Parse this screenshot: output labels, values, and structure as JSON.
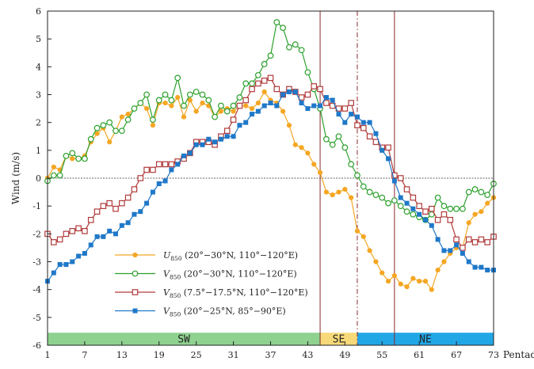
{
  "chart_data": {
    "type": "line",
    "title": "",
    "xlabel": "Pentad",
    "ylabel": "Wind (m/s)",
    "xlim": [
      1,
      73
    ],
    "ylim": [
      -6,
      6
    ],
    "x_ticks": [
      1,
      7,
      13,
      19,
      25,
      31,
      37,
      43,
      49,
      55,
      61,
      67,
      73
    ],
    "y_ticks": [
      -6,
      -5,
      -4,
      -3,
      -2,
      -1,
      0,
      1,
      2,
      3,
      4,
      5,
      6
    ],
    "grid": false,
    "zero_line": true,
    "x": [
      1,
      2,
      3,
      4,
      5,
      6,
      7,
      8,
      9,
      10,
      11,
      12,
      13,
      14,
      15,
      16,
      17,
      18,
      19,
      20,
      21,
      22,
      23,
      24,
      25,
      26,
      27,
      28,
      29,
      30,
      31,
      32,
      33,
      34,
      35,
      36,
      37,
      38,
      39,
      40,
      41,
      42,
      43,
      44,
      45,
      46,
      47,
      48,
      49,
      50,
      51,
      52,
      53,
      54,
      55,
      56,
      57,
      58,
      59,
      60,
      61,
      62,
      63,
      64,
      65,
      66,
      67,
      68,
      69,
      70,
      71,
      72,
      73
    ],
    "series": [
      {
        "name": "U850 (20°−30°N, 110°−120°E)",
        "name_parts": {
          "var": "U",
          "sub": "850",
          "region": " (20°−30°N, 110°−120°E)"
        },
        "color": "#f5a623",
        "marker": "filled-circle",
        "values": [
          0.0,
          0.4,
          0.3,
          0.8,
          0.7,
          0.7,
          0.8,
          1.3,
          1.6,
          1.8,
          1.3,
          1.7,
          2.2,
          2.3,
          2.5,
          2.7,
          2.5,
          1.9,
          2.7,
          2.7,
          2.6,
          2.9,
          2.2,
          2.8,
          2.4,
          2.7,
          2.6,
          2.2,
          2.4,
          2.5,
          2.4,
          2.6,
          2.6,
          2.5,
          2.7,
          3.1,
          2.8,
          2.7,
          2.4,
          1.9,
          1.2,
          1.1,
          0.9,
          0.5,
          0.2,
          -0.5,
          -0.6,
          -0.5,
          -0.4,
          -0.7,
          -1.9,
          -2.1,
          -2.6,
          -3.0,
          -3.4,
          -3.7,
          -3.5,
          -3.8,
          -3.9,
          -3.6,
          -3.7,
          -3.7,
          -4.0,
          -3.3,
          -3.0,
          -2.7,
          -2.5,
          -2.5,
          -1.6,
          -1.3,
          -1.2,
          -0.9,
          -0.7
        ]
      },
      {
        "name": "V850 (20°−30°N, 110°−120°E)",
        "name_parts": {
          "var": "V",
          "sub": "850",
          "region": " (20°−30°N, 110°−120°E)"
        },
        "color": "#2ca02c",
        "marker": "open-circle",
        "values": [
          -0.1,
          0.1,
          0.1,
          0.8,
          0.9,
          0.7,
          0.7,
          1.4,
          1.8,
          1.9,
          2.0,
          1.7,
          1.7,
          2.1,
          2.5,
          2.7,
          3.0,
          2.1,
          2.8,
          3.0,
          2.8,
          3.6,
          2.6,
          3.0,
          3.1,
          3.0,
          2.8,
          2.2,
          2.6,
          2.4,
          2.6,
          2.9,
          3.4,
          3.4,
          3.7,
          4.1,
          4.4,
          5.6,
          5.4,
          4.7,
          4.8,
          4.6,
          3.8,
          3.2,
          2.5,
          1.4,
          1.2,
          1.5,
          1.1,
          0.5,
          0.1,
          -0.3,
          -0.5,
          -0.6,
          -0.7,
          -0.9,
          -0.8,
          -1.0,
          -1.2,
          -1.3,
          -1.4,
          -1.5,
          -1.3,
          -0.7,
          -1.0,
          -1.1,
          -1.1,
          -1.1,
          -0.5,
          -0.4,
          -0.5,
          -0.6,
          -0.2
        ]
      },
      {
        "name": "V850 (7.5°−17.5°N, 110°−120°E)",
        "name_parts": {
          "var": "V",
          "sub": "850",
          "region": " (7.5°−17.5°N, 110°−120°E)"
        },
        "color": "#b03a3a",
        "marker": "open-square",
        "values": [
          -2.0,
          -2.3,
          -2.2,
          -2.0,
          -1.9,
          -1.8,
          -1.9,
          -1.5,
          -1.2,
          -1.0,
          -0.9,
          -1.1,
          -0.9,
          -0.7,
          -0.4,
          0.0,
          0.3,
          0.3,
          0.5,
          0.5,
          0.5,
          0.6,
          0.7,
          0.9,
          1.3,
          1.3,
          1.3,
          1.2,
          1.5,
          1.7,
          2.1,
          2.6,
          2.8,
          3.2,
          3.4,
          3.5,
          3.6,
          3.2,
          3.0,
          3.2,
          3.1,
          2.9,
          3.0,
          3.3,
          3.2,
          2.7,
          2.6,
          2.5,
          2.5,
          2.7,
          1.9,
          1.8,
          1.5,
          1.3,
          1.1,
          1.1,
          0.1,
          0.0,
          -0.4,
          -0.7,
          -1.0,
          -1.2,
          -1.1,
          -1.5,
          -1.3,
          -1.5,
          -2.2,
          -2.5,
          -2.2,
          -2.3,
          -2.2,
          -2.3,
          -2.1
        ]
      },
      {
        "name": "V850 (20°−25°N, 85°−90°E)",
        "name_parts": {
          "var": "V",
          "sub": "850",
          "region": " (20°−25°N, 85°−90°E)"
        },
        "color": "#1f78c8",
        "marker": "filled-square",
        "values": [
          -3.7,
          -3.4,
          -3.1,
          -3.1,
          -3.0,
          -2.8,
          -2.7,
          -2.4,
          -2.1,
          -2.1,
          -1.9,
          -2.0,
          -1.7,
          -1.6,
          -1.3,
          -1.2,
          -0.9,
          -0.5,
          -0.2,
          -0.1,
          0.3,
          0.5,
          0.8,
          0.9,
          1.2,
          1.2,
          1.4,
          1.3,
          1.4,
          1.5,
          1.5,
          1.9,
          2.0,
          2.3,
          2.4,
          2.6,
          2.7,
          2.6,
          3.0,
          3.1,
          3.1,
          2.7,
          2.5,
          2.6,
          2.6,
          2.9,
          2.8,
          2.3,
          2.0,
          2.3,
          2.2,
          2.0,
          2.0,
          1.6,
          1.0,
          0.7,
          -0.1,
          -0.7,
          -0.9,
          -1.1,
          -1.3,
          -1.5,
          -1.7,
          -2.2,
          -2.6,
          -2.6,
          -2.4,
          -2.7,
          -3.0,
          -3.2,
          -3.2,
          -3.3,
          -3.3
        ]
      }
    ],
    "vertical_lines": [
      {
        "x": 45,
        "style": "solid",
        "color": "#8b2a2a"
      },
      {
        "x": 51,
        "style": "dash-dot",
        "color": "#8b2a2a"
      },
      {
        "x": 57,
        "style": "solid",
        "color": "#8b2a2a"
      }
    ],
    "regimes": [
      {
        "label": "SW",
        "from": 1,
        "to": 45,
        "color": "#8fd18f"
      },
      {
        "label": "SE",
        "from": 45,
        "to": 51,
        "color": "#f7d97a"
      },
      {
        "label": "NE",
        "from": 51,
        "to": 73,
        "color": "#22a7e6"
      }
    ],
    "legend_position": "lower-left"
  }
}
